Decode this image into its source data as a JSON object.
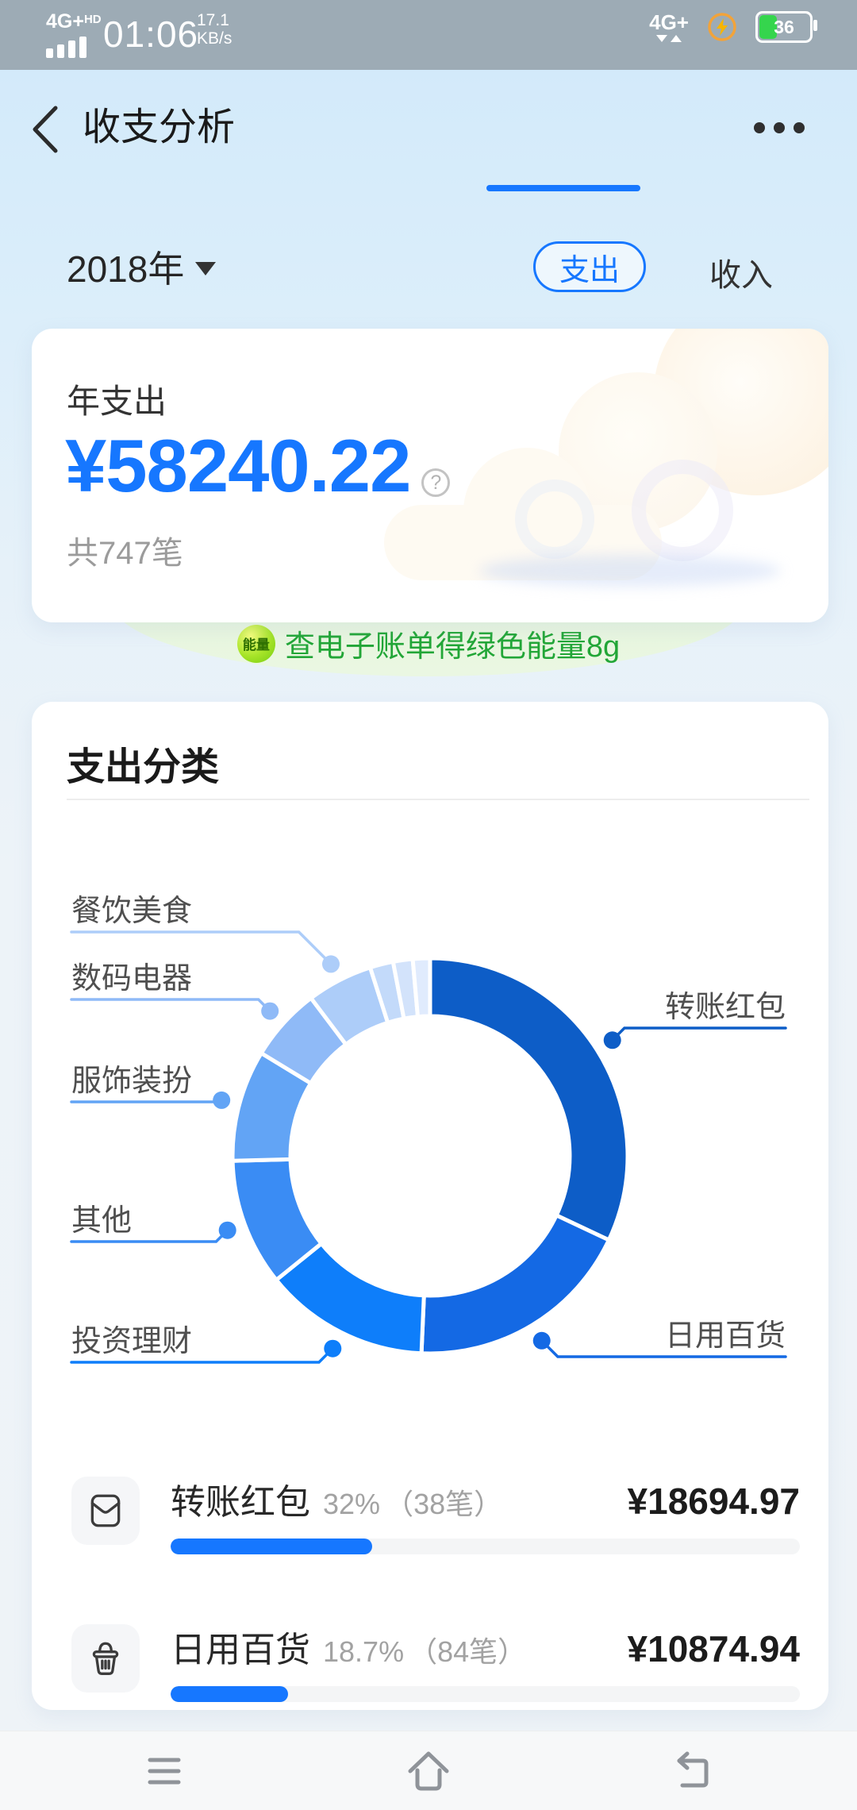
{
  "status_bar": {
    "network_left": "4G+",
    "network_left_sub": "HD",
    "time": "01:06",
    "speed_value": "17.1",
    "speed_unit": "KB/s",
    "network_right": "4G+",
    "battery_level": "36"
  },
  "header": {
    "title": "收支分析"
  },
  "controls": {
    "year": "2018年",
    "tab_expense": "支出",
    "tab_income": "收入"
  },
  "summary_card": {
    "label": "年支出",
    "amount": "¥58240.22",
    "help_glyph": "?",
    "count": "共747笔"
  },
  "energy_banner": {
    "badge": "能量",
    "text": "查电子账单得绿色能量8g"
  },
  "category_card": {
    "title": "支出分类"
  },
  "list": {
    "items": [
      {
        "icon": "red-packet-icon",
        "name": "转账红包",
        "percent": "32%",
        "count": "（38笔）",
        "amount": "¥18694.97",
        "progress": 32
      },
      {
        "icon": "basket-icon",
        "name": "日用百货",
        "percent": "18.7%",
        "count": "（84笔）",
        "amount": "¥10874.94",
        "progress": 18.7
      }
    ]
  },
  "chart_data": {
    "type": "pie",
    "subtype": "donut",
    "title": "支出分类",
    "start_angle_deg": 0,
    "clockwise": true,
    "legend_position": "callout-labels",
    "segments": [
      {
        "label": "转账红包",
        "percent": 32.0,
        "value": 18694.97,
        "count": 38,
        "color": "#0d5dc7"
      },
      {
        "label": "日用百货",
        "percent": 18.7,
        "value": 10874.94,
        "count": 84,
        "color": "#1469e4"
      },
      {
        "label": "投资理财",
        "percent": 13.5,
        "value": null,
        "count": null,
        "color": "#0e7efa"
      },
      {
        "label": "其他",
        "percent": 10.4,
        "value": null,
        "count": null,
        "color": "#3a8cf4"
      },
      {
        "label": "服饰装扮",
        "percent": 9.1,
        "value": null,
        "count": null,
        "color": "#62a4f5"
      },
      {
        "label": "数码电器",
        "percent": 6.0,
        "value": null,
        "count": null,
        "color": "#8fbaf7"
      },
      {
        "label": "餐饮美食",
        "percent": 5.4,
        "value": null,
        "count": null,
        "color": "#adcdf9"
      },
      {
        "label": "",
        "percent": 1.9,
        "value": null,
        "count": null,
        "color": "#c3dafa"
      },
      {
        "label": "",
        "percent": 1.6,
        "value": null,
        "count": null,
        "color": "#d3e3fb"
      },
      {
        "label": "",
        "percent": 1.4,
        "value": null,
        "count": null,
        "color": "#e0ebfd"
      }
    ],
    "total": {
      "label": "年支出",
      "amount": 58240.22,
      "transactions": 747
    }
  },
  "colors": {
    "accent_blue": "#1677ff",
    "dark_segment": "#0d5dc7",
    "energy_green": "#22a637",
    "battery_green": "#35d54d"
  }
}
